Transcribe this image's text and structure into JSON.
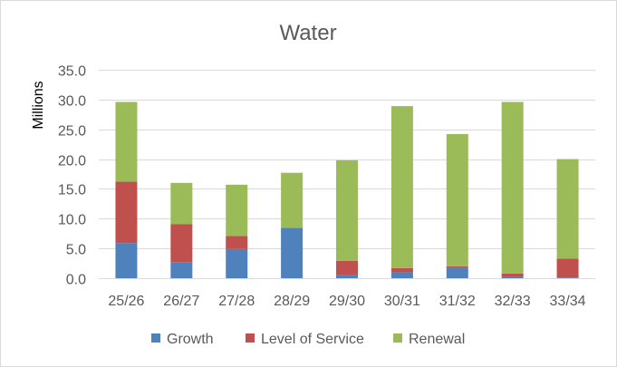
{
  "chart_data": {
    "type": "bar",
    "stacked": true,
    "title": "Water",
    "xlabel": "",
    "ylabel": "Millions",
    "ylim": [
      0,
      35
    ],
    "yticks": [
      "0.0",
      "5.0",
      "10.0",
      "15.0",
      "20.0",
      "25.0",
      "30.0",
      "35.0"
    ],
    "ytick_values": [
      0,
      5,
      10,
      15,
      20,
      25,
      30,
      35
    ],
    "grid": true,
    "legend_position": "bottom",
    "categories": [
      "25/26",
      "26/27",
      "27/28",
      "28/29",
      "29/30",
      "30/31",
      "31/32",
      "32/33",
      "33/34"
    ],
    "series": [
      {
        "name": "Growth",
        "color": "#4f81bd",
        "values": [
          5.9,
          2.7,
          4.9,
          8.4,
          0.6,
          1.0,
          1.7,
          0.3,
          0.1
        ]
      },
      {
        "name": "Level of Service",
        "color": "#c0504d",
        "values": [
          10.3,
          6.4,
          2.2,
          0.1,
          2.3,
          0.7,
          0.3,
          0.5,
          3.2
        ]
      },
      {
        "name": "Renewal",
        "color": "#9bbb59",
        "values": [
          13.4,
          6.9,
          8.6,
          9.2,
          16.9,
          27.2,
          22.2,
          28.8,
          16.7
        ]
      }
    ]
  }
}
